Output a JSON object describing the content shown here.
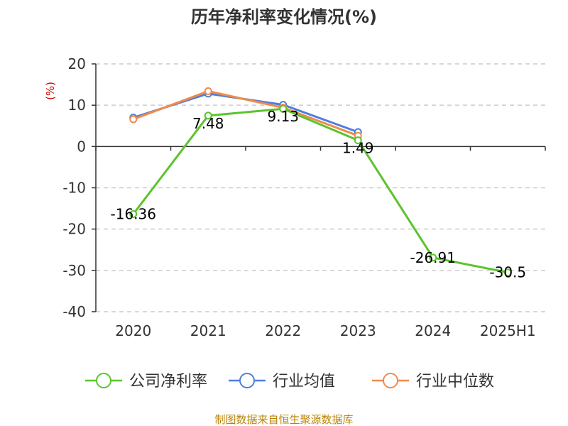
{
  "chart_data": {
    "type": "line",
    "title": "历年净利率变化情况(%)",
    "ylabel": "(%)",
    "categories": [
      "2020",
      "2021",
      "2022",
      "2023",
      "2024",
      "2025H1"
    ],
    "ylim": [
      -40,
      20
    ],
    "yticks": [
      20,
      10,
      0,
      -10,
      -20,
      -30,
      -40
    ],
    "grid": true,
    "legend_position": "bottom",
    "series": [
      {
        "name": "公司净利率",
        "color": "#5bc42b",
        "values": [
          -16.36,
          7.48,
          9.13,
          1.49,
          -26.91,
          -30.5
        ],
        "labels": [
          "-16.36",
          "7.48",
          "9.13",
          "1.49",
          "-26.91",
          "-30.5"
        ]
      },
      {
        "name": "行业均值",
        "color": "#4f7fdc",
        "values": [
          7.0,
          12.8,
          10.1,
          3.5,
          null,
          null
        ]
      },
      {
        "name": "行业中位数",
        "color": "#f08a4b",
        "values": [
          6.6,
          13.4,
          9.4,
          2.6,
          null,
          null
        ]
      }
    ],
    "source": "制图数据来自恒生聚源数据库"
  }
}
